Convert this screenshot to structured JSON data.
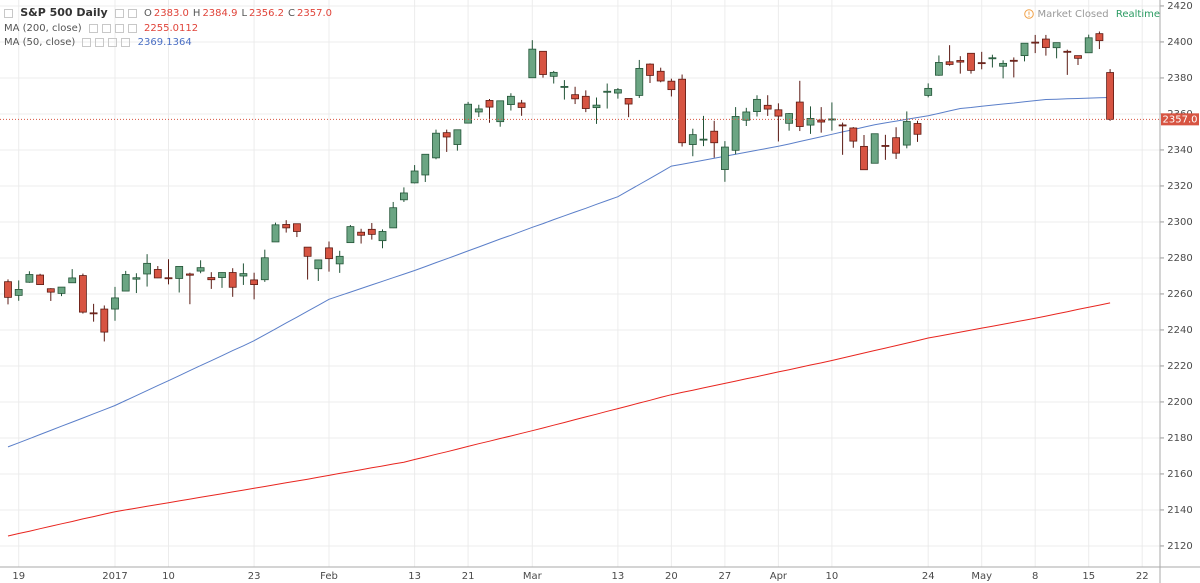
{
  "chart_data": {
    "type": "candlestick",
    "title": "S&P 500 Daily",
    "status": "Market Closed",
    "feed": "Realtime",
    "ohlc_keys": [
      "O",
      "H",
      "L",
      "C"
    ],
    "ohlc_labels": [
      "2383.0",
      "2384.9",
      "2356.2",
      "2357.0"
    ],
    "up_color": "#6ba583",
    "down_color": "#d75442",
    "grid": true,
    "ylim": [
      2108.3,
      2423.3
    ],
    "yticks": [
      2120,
      2140,
      2160,
      2180,
      2200,
      2220,
      2240,
      2260,
      2280,
      2300,
      2320,
      2340,
      2360,
      2380,
      2400,
      2420
    ],
    "categories": [
      null,
      "19",
      null,
      null,
      null,
      null,
      null,
      null,
      null,
      null,
      "2017",
      null,
      null,
      null,
      null,
      "10",
      null,
      null,
      null,
      null,
      null,
      null,
      null,
      "23",
      null,
      null,
      null,
      null,
      null,
      null,
      "Feb",
      null,
      null,
      null,
      null,
      null,
      null,
      null,
      "13",
      null,
      null,
      null,
      null,
      "21",
      null,
      null,
      null,
      null,
      null,
      "Mar",
      null,
      null,
      null,
      null,
      null,
      null,
      null,
      "13",
      null,
      null,
      null,
      null,
      "20",
      null,
      null,
      null,
      null,
      "27",
      null,
      null,
      null,
      null,
      "Apr",
      null,
      null,
      null,
      null,
      "10",
      null,
      null,
      null,
      null,
      null,
      null,
      null,
      null,
      "24",
      null,
      null,
      null,
      null,
      "May",
      null,
      null,
      null,
      null,
      "8",
      null,
      null,
      null,
      null,
      "15",
      null,
      null,
      null,
      null,
      "22"
    ],
    "open": [
      2266.8,
      2259.2,
      2266.5,
      2270.5,
      2262.9,
      2260.3,
      2266.2,
      2270.2,
      2249.5,
      2251.6,
      2251.6,
      2261.6,
      2268.2,
      2271.1,
      2273.6,
      2269.0,
      2268.6,
      2271.1,
      2272.7,
      2269.1,
      2269.1,
      2271.9,
      2269.96,
      2267.8,
      2267.9,
      2288.9,
      2298.6,
      2299.0,
      2286.0,
      2274.0,
      2285.6,
      2276.7,
      2288.5,
      2294.3,
      2295.9,
      2289.6,
      2296.7,
      2312.3,
      2321.7,
      2326.1,
      2335.6,
      2349.6,
      2343.0,
      2354.9,
      2361.1,
      2367.5,
      2355.7,
      2365.2,
      2366.1,
      2380.1,
      2394.8,
      2380.9,
      2375.2,
      2370.7,
      2369.8,
      2363.5,
      2372.5,
      2371.6,
      2368.6,
      2370.3,
      2387.7,
      2383.7,
      2378.2,
      2379.3,
      2343.0,
      2345.97,
      2350.4,
      2329.1,
      2339.8,
      2356.5,
      2361.3,
      2364.8,
      2362.3,
      2354.8,
      2366.6,
      2353.8,
      2356.6,
      2357.2,
      2353.9,
      2352.2,
      2341.98,
      2332.6,
      2342.5,
      2346.8,
      2342.7,
      2354.7,
      2370.3,
      2381.5,
      2388.98,
      2389.7,
      2393.7,
      2388.5,
      2391.05,
      2386.5,
      2389.8,
      2392.4,
      2399.9,
      2401.6,
      2396.8,
      2394.8,
      2392.4,
      2393.98,
      2404.6,
      2383.0,
      null,
      null,
      null
    ],
    "high": [
      2268.1,
      2267.5,
      2272.6,
      2271.2,
      2263.2,
      2263.8,
      2273.8,
      2271.3,
      2254.5,
      2253.6,
      2263.9,
      2272.8,
      2271.5,
      2282.1,
      2275.5,
      2279.3,
      2275.3,
      2271.8,
      2278.7,
      2272.1,
      2272.0,
      2274.3,
      2276.96,
      2271.8,
      2284.6,
      2299.6,
      2300.99,
      2299.0,
      2286.0,
      2279.1,
      2289.1,
      2283.97,
      2298.3,
      2296.2,
      2299.4,
      2295.9,
      2311.1,
      2319.2,
      2331.6,
      2337.6,
      2351.3,
      2351.3,
      2351.2,
      2366.7,
      2365.1,
      2368.3,
      2367.3,
      2371.5,
      2367.8,
      2400.98,
      2394.8,
      2383.9,
      2378.8,
      2375.1,
      2373.1,
      2369.1,
      2376.9,
      2374.4,
      2368.6,
      2390.0,
      2388.1,
      2385.7,
      2379.6,
      2381.9,
      2351.8,
      2358.9,
      2356.2,
      2344.9,
      2363.8,
      2363.4,
      2370.4,
      2370.4,
      2365.9,
      2360.5,
      2378.4,
      2364.2,
      2363.8,
      2366.4,
      2355.2,
      2352.7,
      2348.3,
      2349.1,
      2348.4,
      2352.6,
      2361.4,
      2356.2,
      2376.98,
      2392.5,
      2398.2,
      2392.1,
      2393.7,
      2394.5,
      2392.9,
      2389.8,
      2391.4,
      2399.3,
      2403.9,
      2403.9,
      2399.7,
      2395.7,
      2392.4,
      2404.05,
      2405.8,
      2384.9,
      null,
      null,
      null
    ],
    "low": [
      2254.2,
      2256.2,
      2266.2,
      2265.1,
      2256.1,
      2258.8,
      2266.2,
      2249.1,
      2244.6,
      2233.6,
      2245.1,
      2261.6,
      2260.5,
      2264.1,
      2268.8,
      2265.3,
      2260.8,
      2254.3,
      2271.5,
      2262.8,
      2263.4,
      2258.4,
      2265.0,
      2257.0,
      2266.7,
      2288.9,
      2294.1,
      2291.6,
      2268.0,
      2267.2,
      2272.4,
      2271.7,
      2288.5,
      2288.0,
      2290.2,
      2285.4,
      2296.6,
      2311.1,
      2321.4,
      2322.2,
      2334.8,
      2338.9,
      2339.6,
      2354.9,
      2358.3,
      2355.1,
      2352.9,
      2361.9,
      2358.96,
      2380.1,
      2380.2,
      2376.9,
      2367.98,
      2365.5,
      2361.0,
      2354.5,
      2363.0,
      2368.5,
      2358.2,
      2368.9,
      2377.2,
      2377.6,
      2369.7,
      2341.9,
      2336.5,
      2342.1,
      2335.7,
      2322.3,
      2337.6,
      2353.3,
      2358.6,
      2358.9,
      2344.7,
      2350.7,
      2350.5,
      2348.9,
      2349.6,
      2350.7,
      2337.3,
      2341.2,
      2328.95,
      2332.5,
      2334.5,
      2335.0,
      2340.9,
      2344.5,
      2369.2,
      2381.2,
      2386.8,
      2382.4,
      2382.4,
      2384.8,
      2385.8,
      2379.75,
      2380.3,
      2389.2,
      2393.8,
      2392.4,
      2390.9,
      2381.7,
      2387.2,
      2393.9,
      2396.05,
      2356.2,
      null,
      null,
      null
    ],
    "close": [
      2258.1,
      2262.5,
      2270.8,
      2265.2,
      2261.0,
      2263.8,
      2268.9,
      2249.9,
      2249.3,
      2238.8,
      2257.8,
      2270.8,
      2269.0,
      2277.0,
      2268.9,
      2268.9,
      2275.3,
      2270.4,
      2274.6,
      2267.9,
      2271.9,
      2263.7,
      2271.3,
      2265.2,
      2280.1,
      2298.4,
      2296.7,
      2294.7,
      2280.9,
      2278.9,
      2279.6,
      2280.9,
      2297.4,
      2292.6,
      2293.1,
      2294.7,
      2307.9,
      2316.1,
      2328.3,
      2337.6,
      2349.3,
      2347.2,
      2351.2,
      2365.4,
      2362.8,
      2363.8,
      2367.3,
      2369.8,
      2363.6,
      2396.0,
      2381.9,
      2383.1,
      2375.3,
      2368.4,
      2363.0,
      2364.9,
      2372.6,
      2373.5,
      2365.5,
      2385.3,
      2381.4,
      2378.3,
      2373.5,
      2344.0,
      2348.5,
      2346.0,
      2344.0,
      2341.6,
      2358.6,
      2361.1,
      2368.1,
      2362.7,
      2358.8,
      2360.2,
      2353.0,
      2357.5,
      2355.5,
      2357.2,
      2353.8,
      2344.9,
      2329.0,
      2349.0,
      2342.2,
      2338.2,
      2355.8,
      2348.7,
      2374.2,
      2388.6,
      2387.5,
      2388.8,
      2384.2,
      2388.3,
      2391.2,
      2388.1,
      2389.5,
      2399.3,
      2399.4,
      2396.9,
      2399.6,
      2394.4,
      2390.9,
      2402.3,
      2400.7,
      2357.0,
      null,
      null,
      null
    ],
    "series": [
      {
        "name": "MA (200, close)",
        "color": "#e8251f",
        "values": [
          2125.5,
          2126.9,
          2128.2,
          2129.6,
          2130.9,
          2132.3,
          2133.6,
          2135,
          2136.3,
          2137.7,
          2139,
          2140,
          2141,
          2142,
          2143,
          2144,
          2145,
          2146,
          2147,
          2148,
          2149,
          2150,
          2151,
          2152,
          2153,
          2154.1,
          2155.1,
          2156.1,
          2157.1,
          2158.2,
          2159.2,
          2160.3,
          2161.3,
          2162.3,
          2163.4,
          2164.4,
          2165.5,
          2166.5,
          2168,
          2169.4,
          2170.9,
          2172.3,
          2173.8,
          2175.3,
          2176.8,
          2178.2,
          2179.7,
          2181.1,
          2182.6,
          2184,
          2185.5,
          2187.1,
          2188.6,
          2190.2,
          2191.7,
          2193.2,
          2194.8,
          2196.3,
          2197.8,
          2199.4,
          2200.9,
          2202.5,
          2204,
          2205.3,
          2206.5,
          2207.8,
          2209.1,
          2210.3,
          2211.6,
          2212.9,
          2214.1,
          2215.4,
          2216.7,
          2217.9,
          2219.2,
          2220.5,
          2221.7,
          2223,
          2224.4,
          2225.8,
          2227.2,
          2228.6,
          2229.9,
          2231.3,
          2232.7,
          2234.1,
          2235.5,
          2236.6,
          2237.7,
          2238.8,
          2239.9,
          2241,
          2242.1,
          2243.2,
          2244.3,
          2245.4,
          2246.5,
          2247.7,
          2248.9,
          2250.1,
          2251.4,
          2252.6,
          2253.8,
          2255.0112,
          null,
          null,
          null
        ]
      },
      {
        "name": "MA (50, close)",
        "color": "#5b7fc9",
        "values": [
          2175,
          2177.3,
          2179.6,
          2181.9,
          2184.2,
          2186.5,
          2188.8,
          2191.1,
          2193.4,
          2195.7,
          2198,
          2200.8,
          2203.5,
          2206.3,
          2209.1,
          2211.8,
          2214.6,
          2217.4,
          2220.2,
          2222.9,
          2225.7,
          2228.5,
          2231.2,
          2234,
          2237.3,
          2240.6,
          2243.9,
          2247.1,
          2250.4,
          2253.7,
          2257,
          2259,
          2261,
          2263,
          2265,
          2267,
          2269,
          2271,
          2273,
          2275.2,
          2277.4,
          2279.5,
          2281.7,
          2283.9,
          2286.1,
          2288.3,
          2290.5,
          2292.6,
          2294.8,
          2297,
          2299.1,
          2301.3,
          2303.4,
          2305.5,
          2307.6,
          2309.8,
          2311.9,
          2314,
          2317.4,
          2320.8,
          2324.2,
          2327.6,
          2331,
          2332.1,
          2333.2,
          2334.3,
          2335.4,
          2336.5,
          2337.6,
          2338.7,
          2339.8,
          2340.9,
          2342,
          2343.3,
          2344.7,
          2346,
          2347.3,
          2348.7,
          2350,
          2351.3,
          2352.7,
          2354,
          2355,
          2356,
          2357,
          2358,
          2359,
          2360.3,
          2361.7,
          2363,
          2363.6,
          2364.3,
          2364.9,
          2365.5,
          2366.1,
          2366.8,
          2367.4,
          2368,
          2368.2,
          2368.4,
          2368.6,
          2368.8,
          2369,
          2369.1364,
          null,
          null,
          null
        ]
      }
    ]
  }
}
